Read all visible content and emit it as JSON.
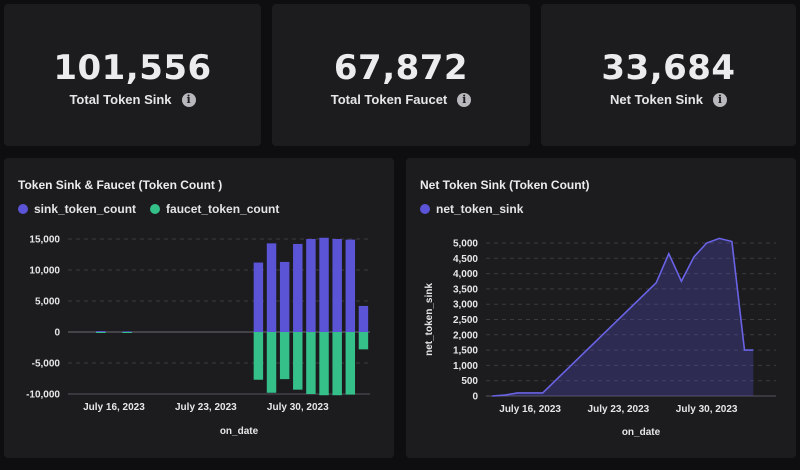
{
  "kpis": [
    {
      "value": "101,556",
      "label": "Total Token Sink"
    },
    {
      "value": "67,872",
      "label": "Total Token Faucet"
    },
    {
      "value": "33,684",
      "label": "Net Token Sink"
    }
  ],
  "colors": {
    "sink": "#5b54d6",
    "faucet": "#35c08a",
    "net": "#5b54d6",
    "grid": "#3a3a40"
  },
  "chart_data": [
    {
      "type": "bar",
      "title": "Token Sink & Faucet (Token Count )",
      "xlabel": "on_date",
      "ylabel": "",
      "ylim": [
        -10000,
        15000
      ],
      "yticks": [
        15000,
        10000,
        5000,
        0,
        -5000,
        -10000
      ],
      "ytick_labels": [
        "15,000",
        "10,000",
        "5,000",
        "0",
        "-5,000",
        "-10,000"
      ],
      "xtick_labels": [
        "July 16, 2023",
        "July 23, 2023",
        "July 30, 2023"
      ],
      "xtick_days": [
        16,
        23,
        30
      ],
      "xrange_days": [
        12.5,
        35.5
      ],
      "series": [
        {
          "name": "sink_token_count",
          "days": [
            15,
            17,
            27,
            28,
            29,
            30,
            31,
            32,
            33,
            34,
            35
          ],
          "values": [
            150,
            100,
            11200,
            14300,
            11300,
            14200,
            15000,
            15200,
            15000,
            14900,
            4200
          ]
        },
        {
          "name": "faucet_token_count",
          "days": [
            15,
            17,
            27,
            28,
            29,
            30,
            31,
            32,
            33,
            34,
            35
          ],
          "values": [
            -150,
            -80,
            -7700,
            -9800,
            -7600,
            -9300,
            -10000,
            -10200,
            -10200,
            -10100,
            -2800
          ]
        }
      ]
    },
    {
      "type": "area",
      "title": "Net Token Sink (Token Count)",
      "xlabel": "on_date",
      "ylabel": "net_token_sink",
      "ylim": [
        0,
        5000
      ],
      "yticks": [
        5000,
        4500,
        4000,
        3500,
        3000,
        2500,
        2000,
        1500,
        1000,
        500,
        0
      ],
      "ytick_labels": [
        "5,000",
        "4,500",
        "4,000",
        "3,500",
        "3,000",
        "2,500",
        "2,000",
        "1,500",
        "1,000",
        "500",
        "0"
      ],
      "xtick_labels": [
        "July 16, 2023",
        "July 23, 2023",
        "July 30, 2023"
      ],
      "xtick_days": [
        16,
        23,
        30
      ],
      "xrange_days": [
        12.5,
        35.5
      ],
      "series": [
        {
          "name": "net_token_sink",
          "days": [
            13,
            14,
            15,
            17,
            26,
            27,
            28,
            29,
            30,
            31,
            32,
            33,
            34
          ],
          "values": [
            0,
            30,
            100,
            100,
            3700,
            4650,
            3750,
            4550,
            5000,
            5150,
            5050,
            1500,
            1500
          ],
          "x_override_days": [
            13,
            14,
            15,
            17,
            26,
            27,
            28,
            29,
            30,
            31,
            32,
            33,
            33.7
          ]
        }
      ]
    }
  ]
}
